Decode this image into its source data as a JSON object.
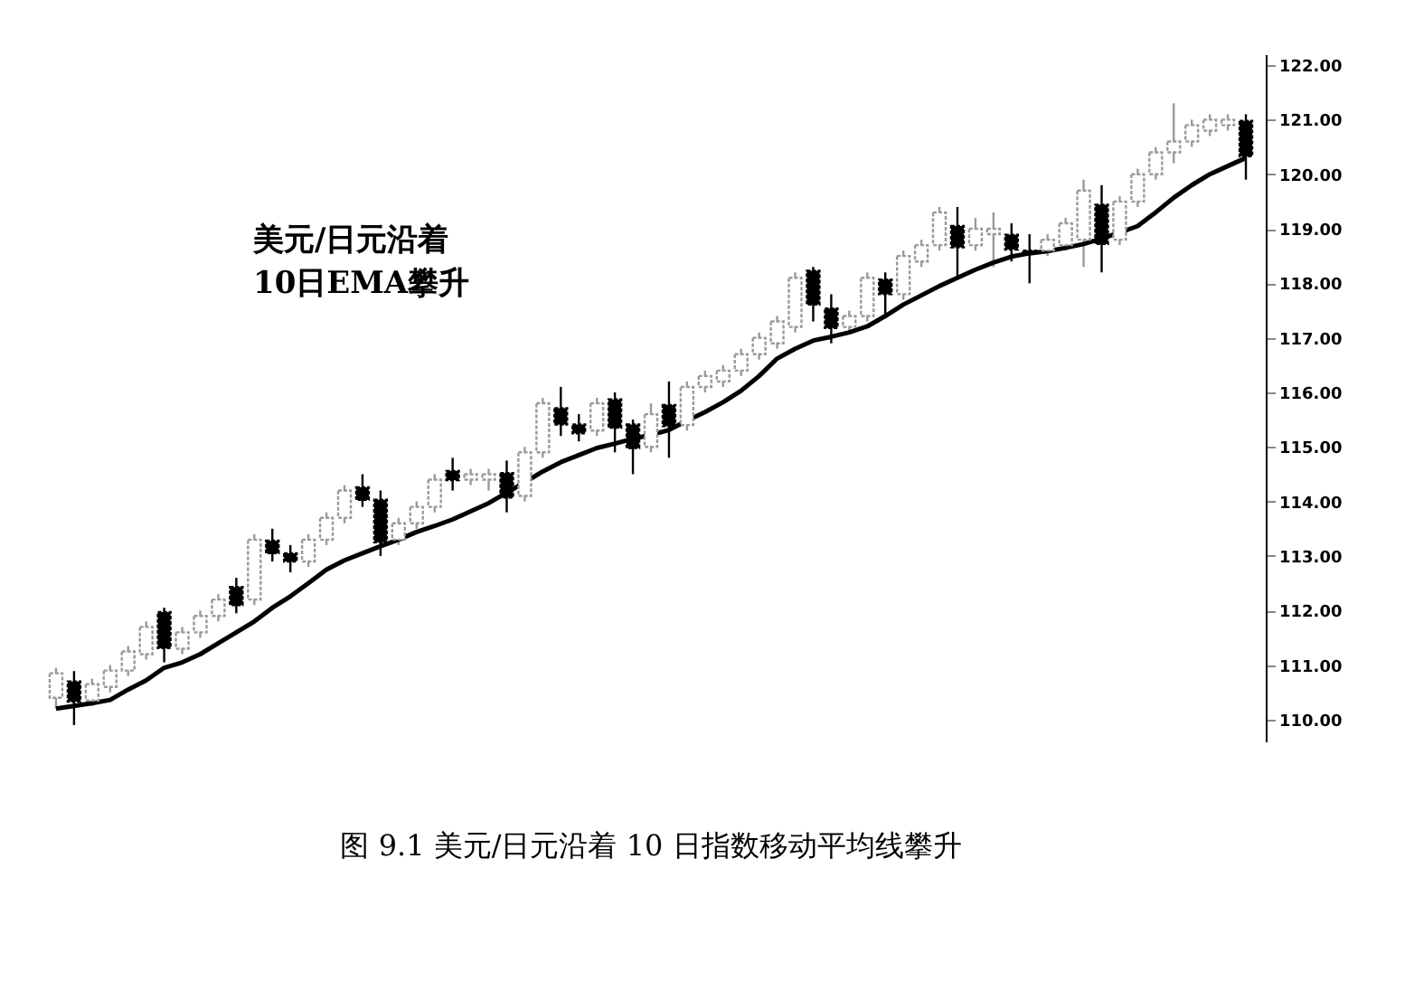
{
  "chart_data": {
    "type": "candlestick",
    "title": "图 9.1   美元/日元沿着 10 日指数移动平均线攀升",
    "annotations": [
      "美元/日元沿着\n10日EMA攀升"
    ],
    "categories": [
      null,
      null,
      null,
      null,
      null,
      null,
      null,
      null,
      null,
      null,
      null,
      null,
      null,
      null,
      null,
      null,
      null,
      null,
      null,
      null,
      null,
      null,
      null,
      null,
      null,
      null,
      null,
      null,
      null,
      null,
      null,
      null,
      null,
      null,
      null,
      null,
      null,
      null,
      null,
      null,
      null,
      null,
      null,
      null,
      null,
      null,
      null,
      null,
      null,
      null,
      null,
      null,
      null,
      null,
      null,
      null,
      null,
      null,
      null,
      null,
      null,
      null,
      null,
      null,
      null,
      null,
      null
    ],
    "ohlc": [
      [
        110.4,
        110.95,
        110.2,
        110.85
      ],
      [
        110.7,
        110.89,
        109.9,
        110.33
      ],
      [
        110.35,
        110.75,
        110.25,
        110.65
      ],
      [
        110.6,
        111.0,
        110.5,
        110.9
      ],
      [
        110.9,
        111.35,
        110.8,
        111.25
      ],
      [
        111.2,
        111.8,
        111.1,
        111.7
      ],
      [
        111.97,
        112.05,
        111.05,
        111.31
      ],
      [
        111.3,
        111.7,
        111.2,
        111.6
      ],
      [
        111.6,
        112.0,
        111.5,
        111.9
      ],
      [
        111.9,
        112.3,
        111.8,
        112.2
      ],
      [
        112.43,
        112.6,
        111.95,
        112.1
      ],
      [
        112.2,
        113.4,
        112.1,
        113.3
      ],
      [
        113.28,
        113.5,
        112.9,
        113.05
      ],
      [
        113.05,
        113.2,
        112.7,
        112.9
      ],
      [
        112.9,
        113.4,
        112.8,
        113.3
      ],
      [
        113.3,
        113.8,
        113.2,
        113.7
      ],
      [
        113.7,
        114.3,
        113.6,
        114.2
      ],
      [
        114.26,
        114.5,
        113.9,
        114.03
      ],
      [
        114.03,
        114.2,
        113.0,
        113.25
      ],
      [
        113.3,
        113.7,
        113.2,
        113.6
      ],
      [
        113.6,
        114.0,
        113.5,
        113.9
      ],
      [
        113.9,
        114.5,
        113.8,
        114.4
      ],
      [
        114.56,
        114.8,
        114.2,
        114.39
      ],
      [
        114.4,
        114.6,
        114.3,
        114.5
      ],
      [
        114.4,
        114.6,
        114.2,
        114.5
      ],
      [
        114.52,
        114.75,
        113.8,
        114.07
      ],
      [
        114.1,
        115.0,
        114.0,
        114.9
      ],
      [
        114.9,
        115.9,
        114.8,
        115.8
      ],
      [
        115.71,
        116.1,
        115.2,
        115.41
      ],
      [
        115.41,
        115.6,
        115.1,
        115.25
      ],
      [
        115.3,
        115.9,
        115.2,
        115.8
      ],
      [
        115.87,
        116.0,
        114.9,
        115.35
      ],
      [
        115.41,
        115.5,
        114.5,
        114.98
      ],
      [
        115.0,
        115.8,
        114.9,
        115.6
      ],
      [
        115.77,
        116.2,
        114.8,
        115.38
      ],
      [
        115.4,
        116.2,
        115.3,
        116.1
      ],
      [
        116.1,
        116.4,
        116.0,
        116.3
      ],
      [
        116.2,
        116.5,
        116.1,
        116.4
      ],
      [
        116.4,
        116.8,
        116.3,
        116.7
      ],
      [
        116.7,
        117.1,
        116.6,
        117.0
      ],
      [
        116.9,
        117.4,
        116.8,
        117.3
      ],
      [
        117.2,
        118.2,
        117.1,
        118.1
      ],
      [
        118.23,
        118.3,
        117.3,
        117.61
      ],
      [
        117.54,
        117.8,
        116.9,
        117.18
      ],
      [
        117.2,
        117.5,
        117.1,
        117.4
      ],
      [
        117.4,
        118.2,
        117.3,
        118.1
      ],
      [
        118.07,
        118.2,
        117.4,
        117.8
      ],
      [
        117.8,
        118.6,
        117.7,
        118.5
      ],
      [
        118.4,
        118.8,
        118.3,
        118.7
      ],
      [
        118.7,
        119.4,
        118.6,
        119.3
      ],
      [
        119.05,
        119.4,
        118.1,
        118.66
      ],
      [
        118.7,
        119.2,
        118.6,
        119.0
      ],
      [
        118.9,
        119.3,
        118.3,
        119.0
      ],
      [
        118.89,
        119.1,
        118.4,
        118.62
      ],
      [
        118.6,
        118.9,
        118.0,
        118.55
      ],
      [
        118.6,
        118.9,
        118.5,
        118.8
      ],
      [
        118.7,
        119.2,
        118.6,
        119.1
      ],
      [
        118.8,
        119.9,
        118.3,
        119.7
      ],
      [
        119.44,
        119.8,
        118.2,
        118.72
      ],
      [
        118.8,
        119.6,
        118.7,
        119.5
      ],
      [
        119.5,
        120.1,
        119.4,
        120.0
      ],
      [
        120.0,
        120.5,
        119.9,
        120.4
      ],
      [
        120.4,
        121.3,
        120.2,
        120.6
      ],
      [
        120.6,
        121.0,
        120.5,
        120.9
      ],
      [
        120.8,
        121.1,
        120.7,
        121.0
      ],
      [
        120.9,
        121.1,
        120.8,
        121.0
      ],
      [
        120.98,
        121.1,
        119.9,
        120.33
      ]
    ],
    "colors": [
      "#9a9a9a",
      "#000000",
      "#9a9a9a",
      "#9a9a9a",
      "#9a9a9a",
      "#9a9a9a",
      "#000000",
      "#9a9a9a",
      "#9a9a9a",
      "#9a9a9a",
      "#000000",
      "#9a9a9a",
      "#000000",
      "#000000",
      "#9a9a9a",
      "#9a9a9a",
      "#9a9a9a",
      "#000000",
      "#000000",
      "#9a9a9a",
      "#9a9a9a",
      "#9a9a9a",
      "#000000",
      "#9a9a9a",
      "#9a9a9a",
      "#000000",
      "#9a9a9a",
      "#9a9a9a",
      "#000000",
      "#000000",
      "#9a9a9a",
      "#000000",
      "#000000",
      "#9a9a9a",
      "#000000",
      "#9a9a9a",
      "#9a9a9a",
      "#9a9a9a",
      "#9a9a9a",
      "#9a9a9a",
      "#9a9a9a",
      "#9a9a9a",
      "#000000",
      "#000000",
      "#9a9a9a",
      "#9a9a9a",
      "#000000",
      "#9a9a9a",
      "#9a9a9a",
      "#9a9a9a",
      "#000000",
      "#9a9a9a",
      "#9a9a9a",
      "#000000",
      "#000000",
      "#9a9a9a",
      "#9a9a9a",
      "#9a9a9a",
      "#000000",
      "#9a9a9a",
      "#9a9a9a",
      "#9a9a9a",
      "#9a9a9a",
      "#9a9a9a",
      "#9a9a9a",
      "#9a9a9a",
      "#000000"
    ],
    "series": [
      {
        "type": "line",
        "color": "#000000",
        "values": [
          110.2,
          110.25,
          110.3,
          110.36,
          110.55,
          110.72,
          110.95,
          111.05,
          111.2,
          111.4,
          111.6,
          111.8,
          112.05,
          112.26,
          112.5,
          112.75,
          112.92,
          113.05,
          113.18,
          113.3,
          113.44,
          113.55,
          113.67,
          113.82,
          113.97,
          114.16,
          114.35,
          114.55,
          114.72,
          114.85,
          114.98,
          115.06,
          115.15,
          115.22,
          115.31,
          115.48,
          115.64,
          115.82,
          116.03,
          116.3,
          116.62,
          116.8,
          116.95,
          117.02,
          117.1,
          117.21,
          117.4,
          117.61,
          117.78,
          117.95,
          118.1,
          118.25,
          118.38,
          118.49,
          118.55,
          118.59,
          118.65,
          118.72,
          118.82,
          118.93,
          119.05,
          119.3,
          119.57,
          119.8,
          120.0,
          120.15,
          120.3
        ]
      }
    ],
    "ylim": [
      109.6,
      122.2
    ],
    "yticks": [
      {
        "value": 110,
        "label": "110.00"
      },
      {
        "value": 111,
        "label": "111.00"
      },
      {
        "value": 112,
        "label": "112.00"
      },
      {
        "value": 113,
        "label": "113.00"
      },
      {
        "value": 114,
        "label": "114.00"
      },
      {
        "value": 115,
        "label": "115.00"
      },
      {
        "value": 116,
        "label": "116.00"
      },
      {
        "value": 117,
        "label": "117.00"
      },
      {
        "value": 118,
        "label": "118.00"
      },
      {
        "value": 119,
        "label": "119.00"
      },
      {
        "value": 120,
        "label": "120.00"
      },
      {
        "value": 121,
        "label": "121.00"
      },
      {
        "value": 122,
        "label": "122.00"
      }
    ],
    "grid": false,
    "tick_labels": "y",
    "line_style": "solid",
    "marker": "none"
  }
}
